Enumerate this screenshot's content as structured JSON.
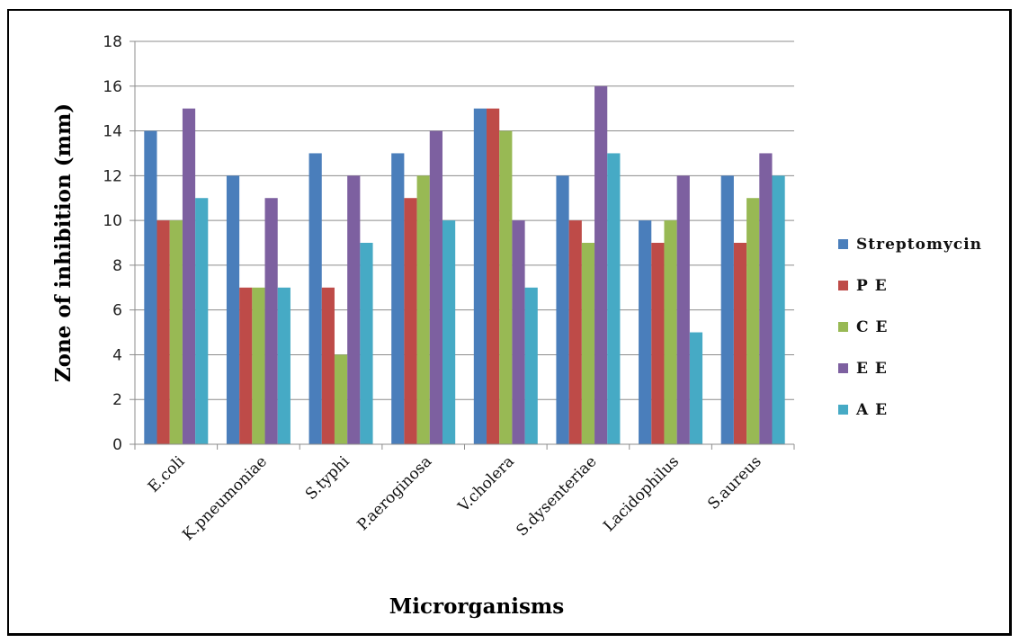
{
  "chart_data": {
    "type": "bar",
    "title": "",
    "xlabel": "Microrganisms",
    "ylabel": "Zone of inhibition (mm)",
    "ylim": [
      0,
      18
    ],
    "yticks": [
      0,
      2,
      4,
      6,
      8,
      10,
      12,
      14,
      16,
      18
    ],
    "grid": true,
    "legend_position": "right",
    "categories": [
      "E.coli",
      "K.pneumoniae",
      "S.typhi",
      "P.aeroginosa",
      "V.cholera",
      "S.dysenteriae",
      "Lacidophilus",
      "S.aureus"
    ],
    "series": [
      {
        "name": "Streptomycin",
        "color": "#4a7ebb",
        "values": [
          14,
          12,
          13,
          13,
          15,
          12,
          10,
          12
        ]
      },
      {
        "name": "P E",
        "color": "#be4b48",
        "values": [
          10,
          7,
          7,
          11,
          15,
          10,
          9,
          9
        ]
      },
      {
        "name": "C E",
        "color": "#98b954",
        "values": [
          10,
          7,
          4,
          12,
          14,
          9,
          10,
          11
        ]
      },
      {
        "name": "E E",
        "color": "#7d60a0",
        "values": [
          15,
          11,
          12,
          14,
          10,
          16,
          12,
          13
        ]
      },
      {
        "name": "A E",
        "color": "#46aac5",
        "values": [
          11,
          7,
          9,
          10,
          7,
          13,
          5,
          12
        ]
      }
    ]
  }
}
